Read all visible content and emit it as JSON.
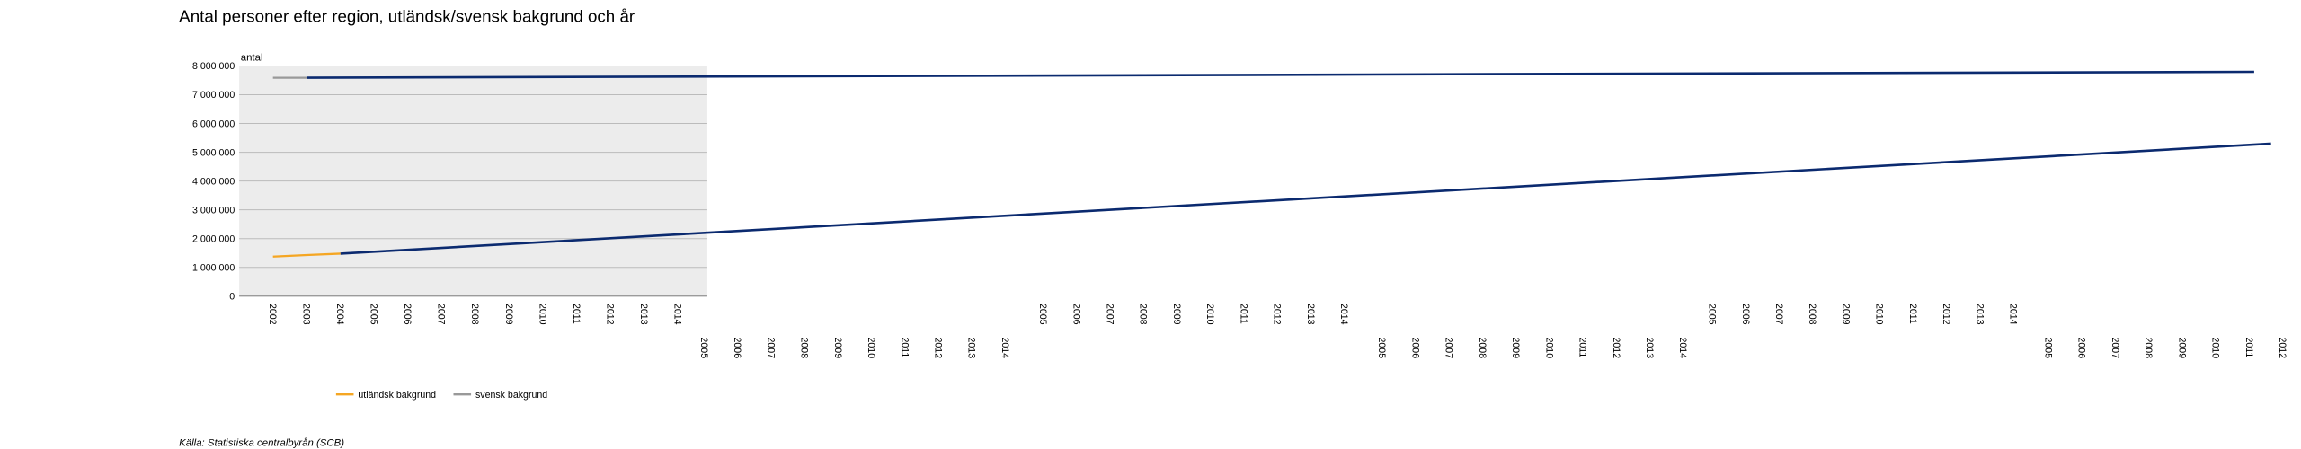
{
  "chart_data": {
    "type": "line",
    "title": "Antal personer efter region, utländsk/svensk bakgrund och år",
    "y_unit_label": "antal",
    "source": "Källa: Statistiska centralbyrån (SCB)",
    "categories": [
      "2002",
      "2003",
      "2004",
      "2005",
      "2006",
      "2007",
      "2008",
      "2009",
      "2010",
      "2011",
      "2012",
      "2013",
      "2014"
    ],
    "series": [
      {
        "name": "utländsk bakgrund",
        "color": "#f5a623",
        "values": [
          1376000,
          1430000,
          1478000,
          null,
          null,
          null,
          null,
          null,
          null,
          null,
          null,
          null,
          null
        ]
      },
      {
        "name": "svensk bakgrund",
        "color": "#999999",
        "values": [
          7590000,
          7590000,
          null,
          null,
          null,
          null,
          null,
          null,
          null,
          null,
          null,
          null,
          null
        ]
      }
    ],
    "overflow_lines": [
      {
        "color": "#0b2a6f",
        "x": [
          2003,
          2060.7
        ],
        "values": [
          7590000,
          7796000
        ]
      },
      {
        "color": "#0b2a6f",
        "x": [
          2004,
          2061.2
        ],
        "values": [
          1478000,
          5300000
        ]
      }
    ],
    "ylim": [
      0,
      8000000
    ],
    "yticks": [
      0,
      {
        "value": 1000000,
        "label": "1 000 000"
      },
      {
        "value": 2000000,
        "label": "2 000 000"
      },
      {
        "value": 3000000,
        "label": "3 000 000"
      },
      {
        "value": 4000000,
        "label": "4 000 000"
      },
      {
        "value": 5000000,
        "label": "5 000 000"
      },
      {
        "value": 6000000,
        "label": "6 000 000"
      },
      {
        "value": 7000000,
        "label": "7 000 000"
      },
      {
        "value": 8000000,
        "label": "8 000 000"
      }
    ],
    "grid": true,
    "plot_background": "#ececec",
    "repeated_x_label_groups": [
      [
        "2005",
        "2006",
        "2007",
        "2008",
        "2009",
        "2010",
        "2011",
        "2012",
        "2013",
        "2014"
      ],
      [
        "2005",
        "2006",
        "2007",
        "2008",
        "2009",
        "2010",
        "2011",
        "2012",
        "2013",
        "2014"
      ],
      [
        "2005",
        "2006",
        "2007",
        "2008",
        "2009",
        "2010",
        "2011",
        "2012",
        "2013",
        "2014"
      ],
      [
        "2005",
        "2006",
        "2007",
        "2008",
        "2009",
        "2010",
        "2011",
        "2012",
        "2013",
        "2014"
      ],
      [
        "2005",
        "2006",
        "2007",
        "2008",
        "2009",
        "2010",
        "2011",
        "2012"
      ]
    ]
  }
}
